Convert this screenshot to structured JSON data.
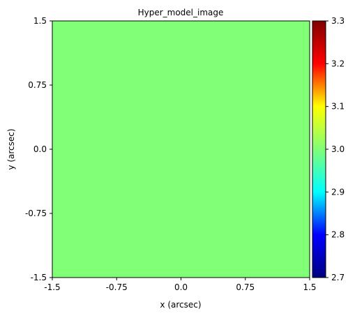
{
  "chart_data": {
    "type": "heatmap",
    "title": "Hyper_model_image",
    "xlabel": "x (arcsec)",
    "ylabel": "y (arcsec)",
    "xlim": [
      -1.5,
      1.5
    ],
    "ylim": [
      -1.5,
      1.5
    ],
    "x_ticks": [
      -1.5,
      -0.75,
      0.0,
      0.75,
      1.5
    ],
    "x_tick_labels": [
      "-1.5",
      "-0.75",
      "0.0",
      "0.75",
      "1.5"
    ],
    "y_ticks": [
      -1.5,
      -0.75,
      0.0,
      0.75,
      1.5
    ],
    "y_tick_labels": [
      "-1.5",
      "-0.75",
      "0.0",
      "0.75",
      "1.5"
    ],
    "value": 3.0,
    "fill_color": "#80ff77",
    "colormap": "jet",
    "colorbar": {
      "vmin": 2.7,
      "vmax": 3.3,
      "ticks": [
        2.7,
        2.8,
        2.9,
        3.0,
        3.1,
        3.2,
        3.3
      ],
      "tick_labels": [
        "2.7",
        "2.8",
        "2.9",
        "3.0",
        "3.1",
        "3.2",
        "3.3"
      ],
      "stops": [
        "#000080",
        "#0000ff",
        "#00ffff",
        "#80ff77",
        "#ffff00",
        "#ff0000",
        "#800000"
      ]
    },
    "grid": false
  }
}
